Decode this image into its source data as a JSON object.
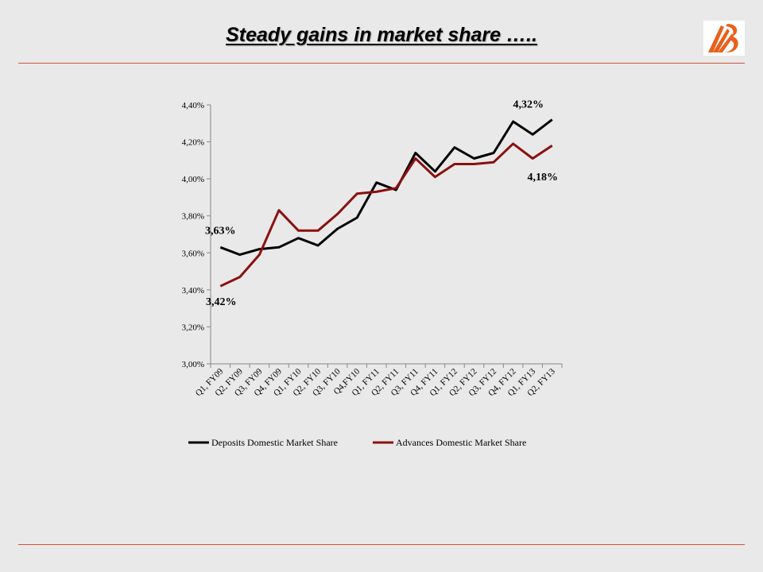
{
  "slide": {
    "title": "Steady gains in market share ….."
  },
  "logo": {
    "name": "bank-of-baroda-logo",
    "color": "#e8601c"
  },
  "chart_data": {
    "type": "line",
    "categories": [
      "Q1, FY09",
      "Q2, FY09",
      "Q3, FY09",
      "Q4, FY09",
      "Q1, FY10",
      "Q2, FY10",
      "Q3, FY10",
      "Q4,FY10",
      "Q1, FY11",
      "Q2, FY11",
      "Q3, FY11",
      "Q4, FY11",
      "Q1, FY12",
      "Q2, FY12",
      "Q3, FY12",
      "Q4, FY12",
      "Q1, FY13",
      "Q2, FY13"
    ],
    "series": [
      {
        "name": "Deposits Domestic Market Share",
        "color": "#000000",
        "values": [
          3.63,
          3.59,
          3.62,
          3.63,
          3.68,
          3.64,
          3.73,
          3.79,
          3.98,
          3.94,
          4.14,
          4.04,
          4.17,
          4.11,
          4.14,
          4.31,
          4.24,
          4.32
        ]
      },
      {
        "name": "Advances Domestic Market Share",
        "color": "#8b1010",
        "values": [
          3.42,
          3.47,
          3.59,
          3.83,
          3.72,
          3.72,
          3.81,
          3.92,
          3.93,
          3.95,
          4.11,
          4.01,
          4.08,
          4.08,
          4.09,
          4.19,
          4.11,
          4.18
        ]
      }
    ],
    "ylim": [
      3.0,
      4.4
    ],
    "y_ticks": [
      "3,00%",
      "3,20%",
      "3,40%",
      "3,60%",
      "3,80%",
      "4,00%",
      "4,20%",
      "4,40%"
    ],
    "annotations": [
      {
        "text": "3,63%",
        "series": 0,
        "index": 0
      },
      {
        "text": "3,42%",
        "series": 1,
        "index": 0
      },
      {
        "text": "4,32%",
        "series": 0,
        "index": 17
      },
      {
        "text": "4,18%",
        "series": 1,
        "index": 17
      }
    ],
    "legend_position": "bottom",
    "grid": false
  }
}
